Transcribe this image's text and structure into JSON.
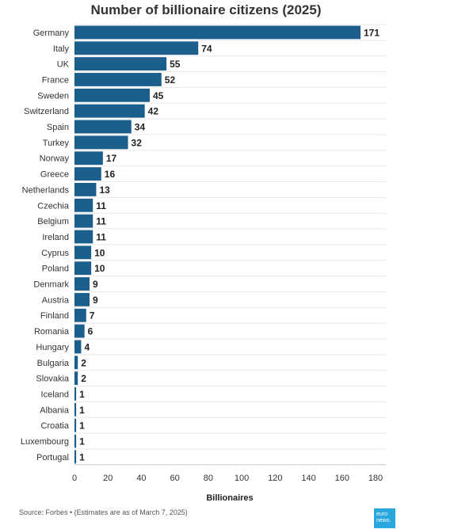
{
  "chart_data": {
    "type": "bar",
    "orientation": "horizontal",
    "title": "Number of billionaire citizens (2025)",
    "xlabel": "Billionaires",
    "ylabel": "",
    "xlim": [
      0,
      180
    ],
    "x_ticks": [
      0,
      20,
      40,
      60,
      80,
      100,
      120,
      140,
      160,
      180
    ],
    "grid": true,
    "bar_color": "#1c5f8d",
    "categories": [
      "Germany",
      "Italy",
      "UK",
      "France",
      "Sweden",
      "Switzerland",
      "Spain",
      "Turkey",
      "Norway",
      "Greece",
      "Netherlands",
      "Czechia",
      "Belgium",
      "Ireland",
      "Cyprus",
      "Poland",
      "Denmark",
      "Austria",
      "Finland",
      "Romania",
      "Hungary",
      "Bulgaria",
      "Slovakia",
      "Iceland",
      "Albania",
      "Croatia",
      "Luxembourg",
      "Portugal"
    ],
    "values": [
      171,
      74,
      55,
      52,
      45,
      42,
      34,
      32,
      17,
      16,
      13,
      11,
      11,
      11,
      10,
      10,
      9,
      9,
      7,
      6,
      4,
      2,
      2,
      1,
      1,
      1,
      1,
      1
    ]
  },
  "footer": {
    "source": "Source: Forbes • (Estimates are as of March 7, 2025)",
    "logo_line1": "euro",
    "logo_line2": "news."
  }
}
